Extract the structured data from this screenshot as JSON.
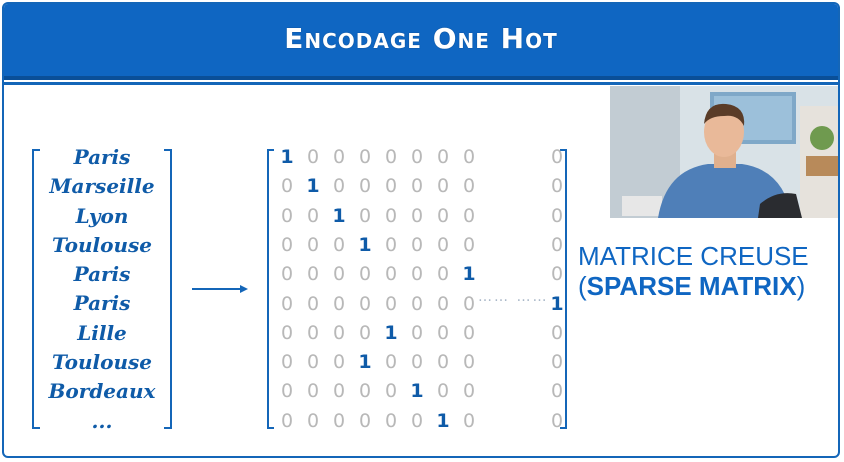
{
  "header": {
    "title": "Encodage One Hot"
  },
  "cities": [
    "Paris",
    "Marseille",
    "Lyon",
    "Toulouse",
    "Paris",
    "Paris",
    "Lille",
    "Toulouse",
    "Bordeaux",
    "..."
  ],
  "matrix": {
    "rows": [
      [
        "1",
        "0",
        "0",
        "0",
        "0",
        "0",
        "0",
        "0",
        "0",
        "0"
      ],
      [
        "0",
        "1",
        "0",
        "0",
        "0",
        "0",
        "0",
        "0",
        "0",
        "0"
      ],
      [
        "0",
        "0",
        "1",
        "0",
        "0",
        "0",
        "0",
        "0",
        "0",
        "0"
      ],
      [
        "0",
        "0",
        "0",
        "1",
        "0",
        "0",
        "0",
        "0",
        "0",
        "0"
      ],
      [
        "0",
        "0",
        "0",
        "0",
        "0",
        "0",
        "0",
        "1",
        "0",
        "0"
      ],
      [
        "0",
        "0",
        "0",
        "0",
        "0",
        "0",
        "0",
        "0",
        "0",
        "1"
      ],
      [
        "0",
        "0",
        "0",
        "0",
        "1",
        "0",
        "0",
        "0",
        "0",
        "0"
      ],
      [
        "0",
        "0",
        "0",
        "1",
        "0",
        "0",
        "0",
        "0",
        "0",
        "0"
      ],
      [
        "0",
        "0",
        "0",
        "0",
        "0",
        "1",
        "0",
        "0",
        "0",
        "0"
      ],
      [
        "0",
        "0",
        "0",
        "0",
        "0",
        "0",
        "1",
        "0",
        "0",
        "0"
      ]
    ],
    "ellipsis": "……  ……"
  },
  "caption": {
    "line1": "MATRICE CREUSE",
    "open": "(",
    "bold": "SPARSE MATRIX",
    "close": ")"
  },
  "colors": {
    "accent": "#0f66c2",
    "zero": "#b8b8b8"
  },
  "icons": {
    "arrow": "right-arrow-icon"
  }
}
